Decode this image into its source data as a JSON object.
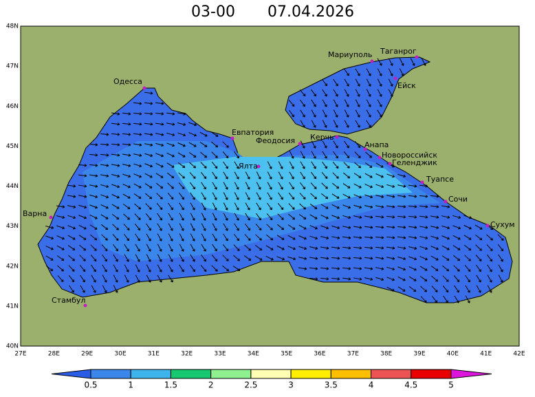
{
  "title": {
    "time": "03-00",
    "date": "07.04.2026"
  },
  "axes": {
    "lat_labels": [
      "48N",
      "47N",
      "46N",
      "45N",
      "44N",
      "43N",
      "42N",
      "41N",
      "40N"
    ],
    "lon_labels": [
      "27E",
      "28E",
      "29E",
      "30E",
      "31E",
      "32E",
      "33E",
      "34E",
      "35E",
      "36E",
      "37E",
      "38E",
      "39E",
      "40E",
      "41E",
      "42E"
    ]
  },
  "cities": [
    "Мариуполь",
    "Таганрог",
    "Ейск",
    "Одесса",
    "Евпатория",
    "Феодосия",
    "Керчь",
    "Ялта",
    "Анапа",
    "Новороссийск",
    "Геленджик",
    "Туапсе",
    "Сочи",
    "Варна",
    "Сухум",
    "Стамбул"
  ],
  "legend": {
    "ticks": [
      0.5,
      1,
      1.5,
      2,
      2.5,
      3,
      3.5,
      4,
      4.5,
      5
    ],
    "colors": [
      "#2a5ce6",
      "#3a86ea",
      "#3eb4ec",
      "#18c870",
      "#8ef08e",
      "#ffffb4",
      "#ffee00",
      "#ffbe00",
      "#ec5454",
      "#e80000",
      "#dc14dc"
    ]
  }
}
